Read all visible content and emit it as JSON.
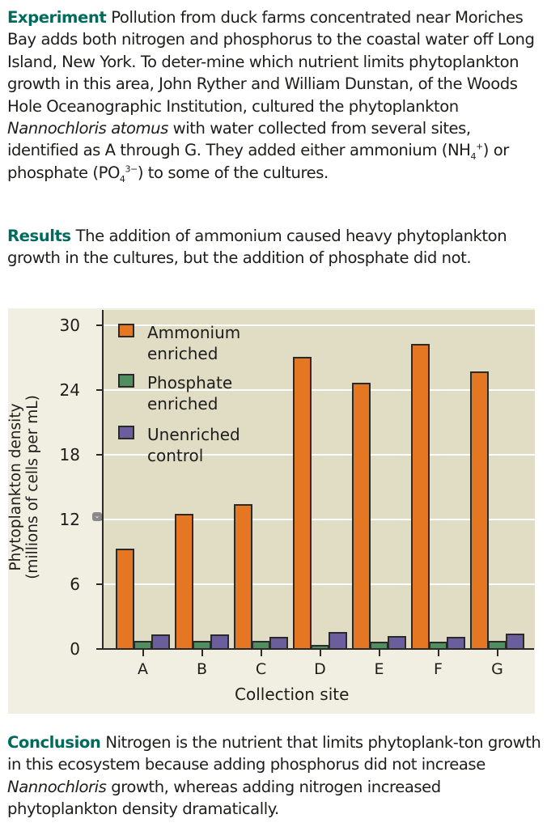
{
  "experiment": {
    "heading": "Experiment",
    "text_1": "Pollution from duck farms concentrated near Moriches Bay adds both nitrogen and phosphorus to the coastal water off Long Island, New York. To deter-mine which nutrient limits phytoplankton growth in this area, John Ryther and William Dunstan, of the Woods Hole Oceanographic Institution, cultured the phytoplankton ",
    "species": "Nannochloris atomus",
    "text_2": " with water collected from several sites, identified as A through G. They added either ammonium (NH",
    "nh_sub": "4",
    "nh_sup": "+",
    "text_3": ") or phosphate (PO",
    "po_sub": "4",
    "po_sup": "3−",
    "text_4": ") to some of the cultures."
  },
  "results": {
    "heading": "Results",
    "text": "The addition of ammonium caused heavy phytoplankton growth in the cultures, but the addition of phosphate did not."
  },
  "conclusion": {
    "heading": "Conclusion",
    "text_1": "Nitrogen is the nutrient that limits phytoplank-ton growth in this ecosystem because adding phosphorus did not increase ",
    "genus": "Nannochloris",
    "text_2": " growth, whereas adding nitrogen increased phytoplankton density dramatically."
  },
  "colors": {
    "heading": "#006b5d",
    "ammonium": "#e67722",
    "phosphate": "#4f8f5f",
    "control": "#6a5e9c",
    "plot_bg": "#e1ddc5",
    "figure_bg": "#f1efe1"
  },
  "chart_data": {
    "type": "bar",
    "title": "",
    "xlabel": "Collection site",
    "ylabel": "Phytoplankton density (millions of cells per mL)",
    "ylim": [
      0,
      30
    ],
    "yticks": [
      0,
      6,
      12,
      18,
      24,
      30
    ],
    "grid": true,
    "legend_position": "upper-left inside plot",
    "categories": [
      "A",
      "B",
      "C",
      "D",
      "E",
      "F",
      "G"
    ],
    "series": [
      {
        "name": "Ammonium enriched",
        "values": [
          9.3,
          12.5,
          13.4,
          27.1,
          24.7,
          28.3,
          25.7
        ]
      },
      {
        "name": "Phosphate enriched",
        "values": [
          0.75,
          0.75,
          0.75,
          0.35,
          0.7,
          0.7,
          0.75
        ]
      },
      {
        "name": "Unenriched control",
        "values": [
          1.35,
          1.35,
          1.1,
          1.6,
          1.2,
          1.1,
          1.4
        ]
      }
    ],
    "legend": [
      {
        "line1": "Ammonium",
        "line2": "enriched"
      },
      {
        "line1": "Phosphate",
        "line2": "enriched"
      },
      {
        "line1": "Unenriched",
        "line2": "control"
      }
    ],
    "ytitle_line1": "Phytoplankton density",
    "ytitle_line2": "(millions of cells per mL)"
  }
}
